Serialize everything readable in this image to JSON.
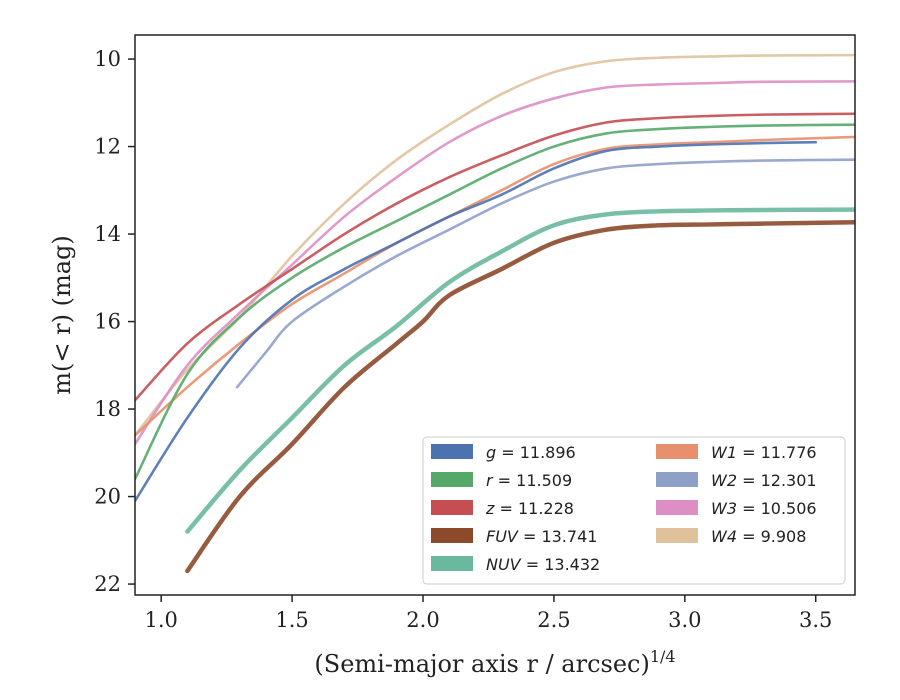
{
  "chart_data": {
    "type": "line",
    "title": "",
    "xlabel": "(Semi-major axis r / arcsec)",
    "xlabel_superscript": "1/4",
    "ylabel": "m(< r) (mag)",
    "xlim": [
      0.9,
      3.65
    ],
    "ylim": [
      22.25,
      9.45
    ],
    "y_inverted": true,
    "grid": false,
    "legend_position": "lower-right",
    "x_ticks": [
      "1.0",
      "1.5",
      "2.0",
      "2.5",
      "3.0",
      "3.5"
    ],
    "x_tick_values": [
      1.0,
      1.5,
      2.0,
      2.5,
      3.0,
      3.5
    ],
    "y_ticks": [
      "10",
      "12",
      "14",
      "16",
      "18",
      "20",
      "22"
    ],
    "y_tick_values": [
      10,
      12,
      14,
      16,
      18,
      20,
      22
    ],
    "series": [
      {
        "name": "g = 11.896",
        "label_var": "g",
        "label_val": "11.896",
        "color": "#4c72b0",
        "x": [
          0.9,
          1.1,
          1.3,
          1.5,
          1.7,
          1.9,
          2.1,
          2.3,
          2.5,
          2.7,
          2.9,
          3.1,
          3.3,
          3.5
        ],
        "y": [
          20.1,
          18.2,
          16.6,
          15.5,
          14.8,
          14.2,
          13.6,
          13.1,
          12.5,
          12.1,
          12.0,
          11.95,
          11.92,
          11.9
        ]
      },
      {
        "name": "r = 11.509",
        "label_var": "r",
        "label_val": "11.509",
        "color": "#55a868",
        "x": [
          0.9,
          1.1,
          1.3,
          1.5,
          1.7,
          1.9,
          2.1,
          2.3,
          2.5,
          2.7,
          2.9,
          3.1,
          3.3,
          3.65
        ],
        "y": [
          19.6,
          17.2,
          15.9,
          15.0,
          14.3,
          13.7,
          13.1,
          12.5,
          12.0,
          11.7,
          11.6,
          11.55,
          11.52,
          11.5
        ]
      },
      {
        "name": "z = 11.228",
        "label_var": "z",
        "label_val": "11.228",
        "color": "#c44e52",
        "x": [
          0.9,
          1.1,
          1.3,
          1.5,
          1.7,
          1.9,
          2.1,
          2.3,
          2.5,
          2.7,
          2.9,
          3.1,
          3.3,
          3.65
        ],
        "y": [
          17.8,
          16.5,
          15.6,
          14.8,
          14.0,
          13.3,
          12.7,
          12.2,
          11.75,
          11.45,
          11.35,
          11.3,
          11.27,
          11.25
        ]
      },
      {
        "name": "FUV = 13.741",
        "label_var": "FUV",
        "label_val": "13.741",
        "color": "#8c4a2a",
        "x": [
          1.1,
          1.3,
          1.5,
          1.7,
          1.9,
          2.0,
          2.1,
          2.3,
          2.5,
          2.7,
          2.9,
          3.1,
          3.3,
          3.65
        ],
        "y": [
          21.7,
          20.0,
          18.8,
          17.5,
          16.5,
          16.0,
          15.4,
          14.8,
          14.2,
          13.9,
          13.8,
          13.78,
          13.76,
          13.73
        ]
      },
      {
        "name": "NUV = 13.432",
        "label_var": "NUV",
        "label_val": "13.432",
        "color": "#6ab89e",
        "x": [
          1.1,
          1.3,
          1.5,
          1.7,
          1.9,
          2.1,
          2.3,
          2.5,
          2.7,
          2.9,
          3.1,
          3.3,
          3.65
        ],
        "y": [
          20.8,
          19.4,
          18.2,
          17.0,
          16.1,
          15.1,
          14.4,
          13.8,
          13.55,
          13.48,
          13.46,
          13.45,
          13.44
        ]
      },
      {
        "name": "W1 = 11.776",
        "label_var": "W1",
        "label_val": "11.776",
        "color": "#e8906e",
        "x": [
          0.9,
          1.1,
          1.3,
          1.5,
          1.7,
          1.9,
          2.1,
          2.3,
          2.5,
          2.7,
          2.9,
          3.1,
          3.3,
          3.65
        ],
        "y": [
          18.6,
          17.5,
          16.5,
          15.6,
          14.9,
          14.2,
          13.6,
          13.0,
          12.4,
          12.05,
          11.95,
          11.9,
          11.85,
          11.78
        ]
      },
      {
        "name": "W2 = 12.301",
        "label_var": "W2",
        "label_val": "12.301",
        "color": "#8fa0c8",
        "x": [
          1.29,
          1.4,
          1.5,
          1.7,
          1.9,
          2.1,
          2.3,
          2.5,
          2.7,
          2.9,
          3.1,
          3.3,
          3.65
        ],
        "y": [
          17.5,
          16.7,
          16.0,
          15.2,
          14.5,
          13.9,
          13.3,
          12.8,
          12.5,
          12.4,
          12.35,
          12.32,
          12.3
        ]
      },
      {
        "name": "W3 = 10.506",
        "label_var": "W3",
        "label_val": "10.506",
        "color": "#dd8fc3",
        "x": [
          0.9,
          1.1,
          1.3,
          1.5,
          1.7,
          1.9,
          2.1,
          2.3,
          2.5,
          2.7,
          2.9,
          3.1,
          3.3,
          3.65
        ],
        "y": [
          18.8,
          17.0,
          15.8,
          14.7,
          13.6,
          12.7,
          11.9,
          11.3,
          10.9,
          10.65,
          10.58,
          10.55,
          10.52,
          10.51
        ]
      },
      {
        "name": "W4 = 9.908",
        "label_var": "W4",
        "label_val": "9.908",
        "color": "#dfc29c",
        "x": [
          0.9,
          1.1,
          1.3,
          1.5,
          1.7,
          1.9,
          2.1,
          2.3,
          2.5,
          2.7,
          2.9,
          3.1,
          3.3,
          3.65
        ],
        "y": [
          18.6,
          17.1,
          15.9,
          14.5,
          13.3,
          12.3,
          11.5,
          10.8,
          10.3,
          10.05,
          9.97,
          9.94,
          9.92,
          9.91
        ]
      }
    ]
  }
}
